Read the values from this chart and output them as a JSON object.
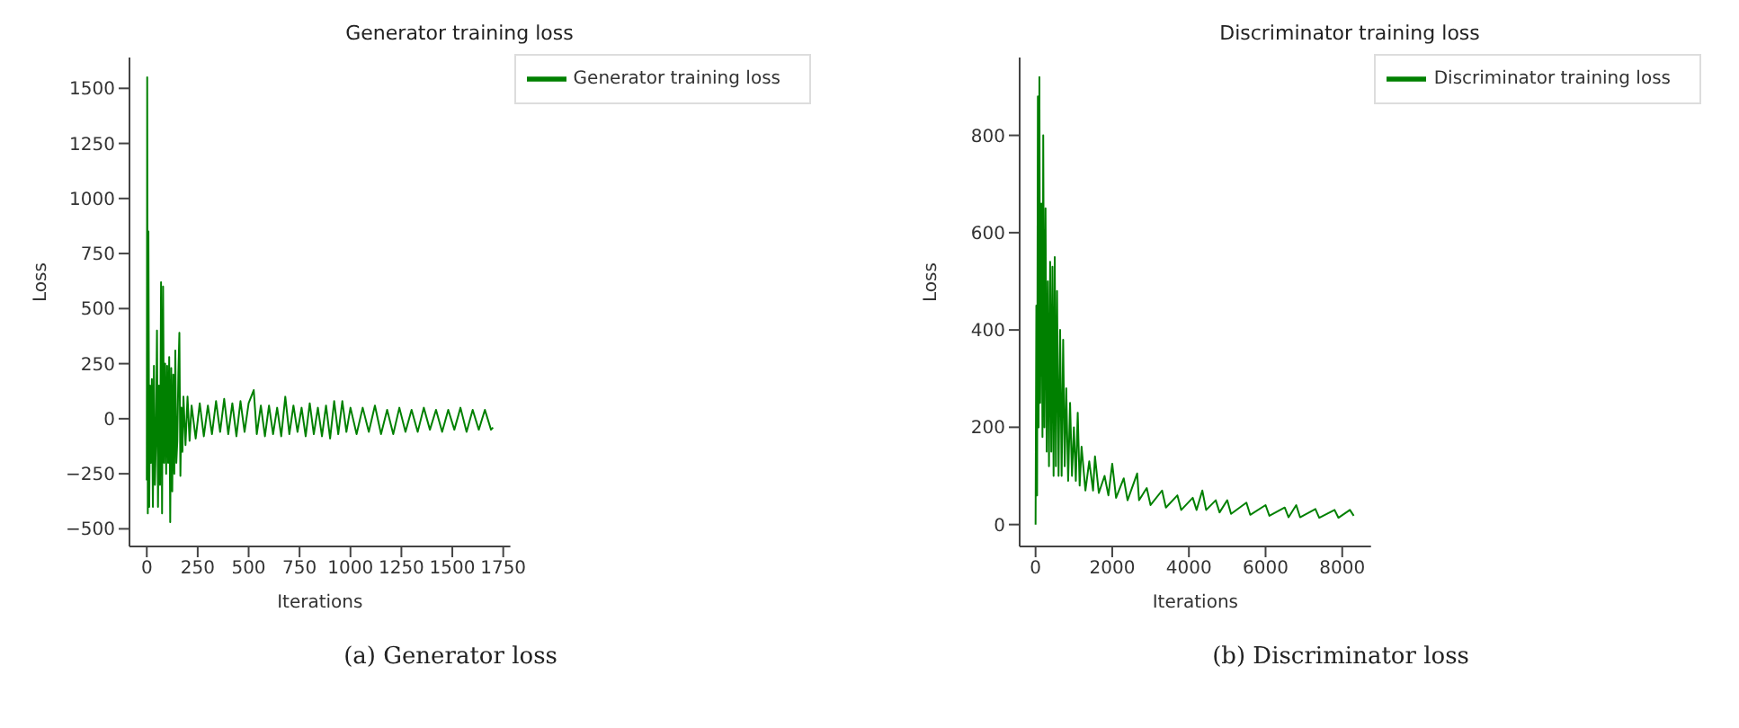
{
  "chart_data": [
    {
      "type": "line",
      "title": "Generator training loss",
      "xlabel": "Iterations",
      "ylabel": "Loss",
      "annotations": [
        "(a) Generator loss"
      ],
      "legend": "top right",
      "xlim": [
        -85,
        1785
      ],
      "ylim": [
        -580,
        1640
      ],
      "xticks": [
        0,
        250,
        500,
        750,
        1000,
        1250,
        1500,
        1750
      ],
      "yticks": [
        -500,
        -250,
        0,
        250,
        500,
        750,
        1000,
        1250,
        1500
      ],
      "series": [
        {
          "name": "Generator training loss",
          "color": "#008000",
          "x": [
            0,
            2,
            5,
            8,
            12,
            16,
            20,
            25,
            30,
            35,
            40,
            45,
            50,
            55,
            60,
            65,
            70,
            75,
            80,
            85,
            90,
            95,
            100,
            105,
            110,
            115,
            120,
            125,
            130,
            135,
            140,
            145,
            150,
            155,
            160,
            165,
            170,
            175,
            180,
            190,
            200,
            210,
            220,
            240,
            260,
            280,
            300,
            320,
            340,
            360,
            380,
            400,
            420,
            440,
            460,
            480,
            500,
            525,
            540,
            560,
            580,
            600,
            620,
            640,
            660,
            680,
            700,
            720,
            740,
            760,
            780,
            800,
            820,
            840,
            860,
            880,
            900,
            920,
            940,
            960,
            980,
            1000,
            1030,
            1060,
            1090,
            1120,
            1150,
            1180,
            1210,
            1240,
            1270,
            1300,
            1330,
            1360,
            1390,
            1420,
            1450,
            1480,
            1510,
            1540,
            1570,
            1600,
            1630,
            1660,
            1690,
            1700
          ],
          "values": [
            -280,
            1550,
            -430,
            850,
            -400,
            150,
            -200,
            180,
            -400,
            240,
            -300,
            -100,
            400,
            -400,
            150,
            -300,
            620,
            -430,
            600,
            -200,
            250,
            -250,
            240,
            -200,
            280,
            -470,
            230,
            -330,
            200,
            -250,
            310,
            -200,
            -100,
            200,
            390,
            -260,
            50,
            -150,
            100,
            -120,
            100,
            -100,
            60,
            -90,
            70,
            -80,
            60,
            -70,
            80,
            -60,
            90,
            -70,
            70,
            -80,
            80,
            -60,
            70,
            130,
            -70,
            60,
            -80,
            60,
            -70,
            50,
            -80,
            100,
            -70,
            60,
            -60,
            50,
            -80,
            70,
            -70,
            50,
            -80,
            60,
            -90,
            80,
            -70,
            80,
            -60,
            50,
            -70,
            50,
            -60,
            60,
            -70,
            40,
            -70,
            50,
            -60,
            40,
            -60,
            50,
            -50,
            40,
            -60,
            40,
            -50,
            50,
            -60,
            40,
            -50,
            40,
            -50,
            -40
          ]
        }
      ]
    },
    {
      "type": "line",
      "title": "Discriminator training loss",
      "xlabel": "Iterations",
      "ylabel": "Loss",
      "annotations": [
        "(b) Discriminator loss"
      ],
      "legend": "top right",
      "xlim": [
        -415,
        8750
      ],
      "ylim": [
        -45,
        960
      ],
      "xticks": [
        0,
        2000,
        4000,
        6000,
        8000
      ],
      "yticks": [
        0,
        200,
        400,
        600,
        800
      ],
      "series": [
        {
          "name": "Discriminator training loss",
          "color": "#008000",
          "x": [
            0,
            20,
            40,
            60,
            80,
            100,
            120,
            150,
            180,
            200,
            230,
            260,
            290,
            320,
            350,
            380,
            410,
            440,
            470,
            500,
            530,
            560,
            600,
            640,
            680,
            720,
            760,
            800,
            850,
            900,
            950,
            1000,
            1050,
            1100,
            1150,
            1200,
            1300,
            1400,
            1500,
            1550,
            1650,
            1800,
            1900,
            2000,
            2100,
            2300,
            2400,
            2650,
            2700,
            2900,
            3000,
            3300,
            3400,
            3700,
            3800,
            4100,
            4200,
            4350,
            4450,
            4700,
            4800,
            5000,
            5100,
            5500,
            5600,
            6000,
            6100,
            6500,
            6600,
            6800,
            6900,
            7300,
            7400,
            7800,
            7900,
            8200,
            8300
          ],
          "values": [
            0,
            450,
            60,
            880,
            200,
            920,
            250,
            660,
            180,
            800,
            200,
            650,
            150,
            500,
            120,
            540,
            150,
            530,
            100,
            550,
            120,
            480,
            100,
            400,
            100,
            380,
            120,
            280,
            90,
            250,
            100,
            200,
            90,
            230,
            80,
            160,
            70,
            130,
            70,
            140,
            65,
            100,
            60,
            125,
            55,
            95,
            50,
            105,
            50,
            75,
            40,
            70,
            35,
            60,
            30,
            55,
            30,
            70,
            30,
            50,
            25,
            50,
            22,
            45,
            20,
            40,
            18,
            35,
            15,
            40,
            15,
            32,
            14,
            30,
            14,
            30,
            18
          ]
        }
      ]
    }
  ]
}
